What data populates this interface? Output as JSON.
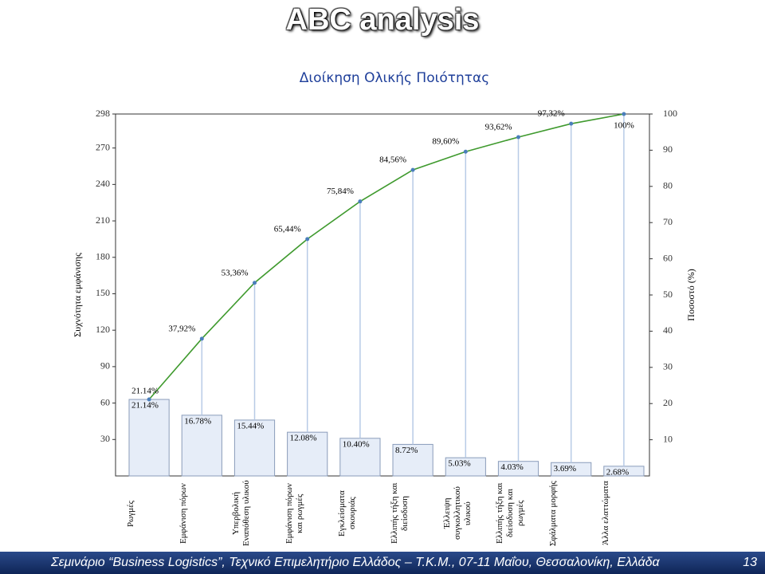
{
  "slide": {
    "title": "ABC analysis",
    "footer": "Σεμινάριο “Business Logistics”, Τεχνικό Επιμελητήριο Ελλάδος – Τ.Κ.Μ., 07-11 Μαΐου, Θεσσαλονίκη, Ελλάδα",
    "page": "13"
  },
  "chart_data": {
    "type": "pareto",
    "title": "Διοίκηση Ολικής Ποιότητας",
    "y_label": "Συχνότητα εμφάνισης",
    "y2_label": "Ποσοστό (%)",
    "categories": [
      "Ρωγμές",
      "Εμφάνιση πόρων",
      "Υπερβολική Εναπόθεση υλικού",
      "Εμφάνιση πόρων και ρωγμές",
      "Εγκλείσματα σκουριάς",
      "Ελλιπής τήξη και διείσδυση",
      "Έλλειψη συγκολλητικού υλικού",
      "Ελλιπής τήξη και διείσδυση και ρωγμές",
      "Σφάλματα μορφής",
      "Άλλα ελαττώματα"
    ],
    "ylim": [
      0,
      298
    ],
    "yticks": [
      30,
      60,
      90,
      120,
      150,
      180,
      210,
      240,
      270,
      298
    ],
    "y2lim": [
      0,
      100
    ],
    "y2ticks": [
      10,
      20,
      30,
      40,
      50,
      60,
      70,
      80,
      90,
      100
    ],
    "series": [
      {
        "type": "bar",
        "axis": "y2",
        "color": "#e6edf8",
        "values": [
          21.14,
          16.78,
          15.44,
          12.08,
          10.4,
          8.72,
          5.03,
          4.03,
          3.69,
          2.68
        ],
        "value_labels": [
          "21.14%",
          "16.78%",
          "15.44%",
          "12.08%",
          "10.40%",
          "8.72%",
          "5.03%",
          "4.03%",
          "3.69%",
          "2.68%"
        ]
      },
      {
        "type": "line",
        "axis": "y2",
        "color": "#3f9a2e",
        "values": [
          21.14,
          37.92,
          53.36,
          65.44,
          75.84,
          84.56,
          89.6,
          93.62,
          97.32,
          100
        ],
        "value_labels": [
          "21.14%",
          "37,92%",
          "53,36%",
          "65,44%",
          "75,84%",
          "84,56%",
          "89,60%",
          "93,62%",
          "97,32%",
          "100%"
        ]
      }
    ]
  }
}
